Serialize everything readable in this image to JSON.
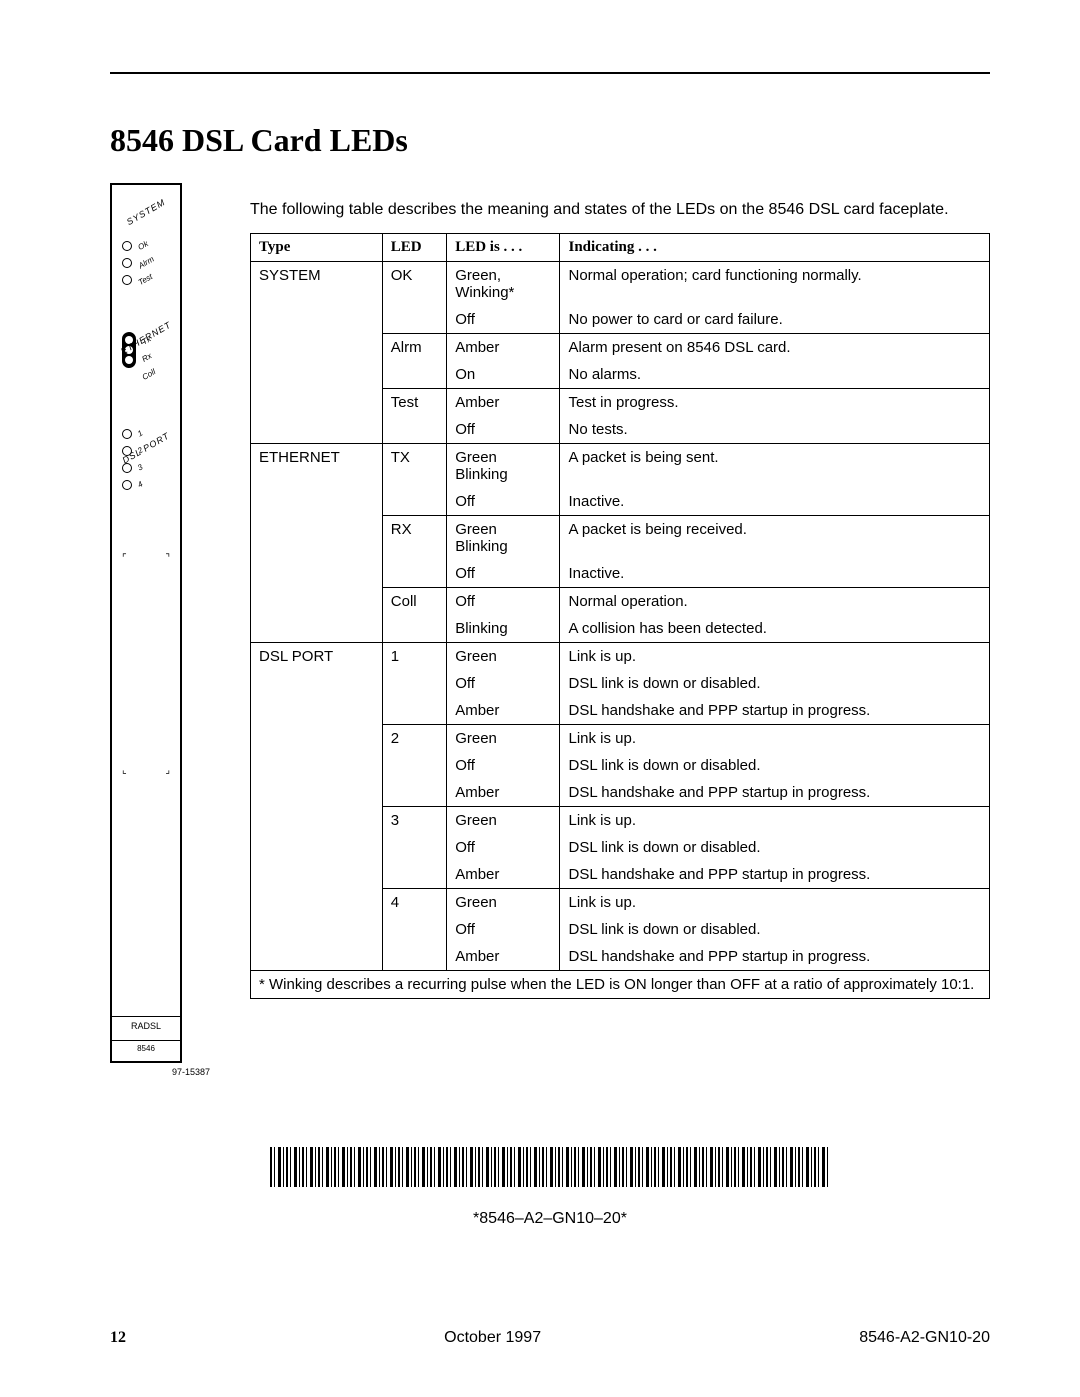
{
  "title": "8546 DSL Card LEDs",
  "intro": "The following table describes the meaning and states of the LEDs on the 8546 DSL card faceplate.",
  "faceplate": {
    "system_label": "SYSTEM",
    "system_leds": [
      "Ok",
      "Alrm",
      "Test"
    ],
    "ethernet_label": "ETHERNET",
    "ethernet_leds": [
      "Tx",
      "Rx",
      "Coll"
    ],
    "dslport_label": "DSL PORT",
    "dslport_leds": [
      "1",
      "2",
      "3",
      "4"
    ],
    "radsl": "RADSL",
    "model": "8546",
    "figref": "97-15387"
  },
  "table": {
    "headers": [
      "Type",
      "LED",
      "LED is . . .",
      "Indicating . . ."
    ],
    "groups": [
      {
        "type": "SYSTEM",
        "leds": [
          {
            "led": "OK",
            "states": [
              {
                "state": "Green, Winking*",
                "ind": "Normal operation; card functioning normally."
              },
              {
                "state": "Off",
                "ind": "No power to card or card failure."
              }
            ]
          },
          {
            "led": "Alrm",
            "states": [
              {
                "state": "Amber",
                "ind": "Alarm present on 8546 DSL card."
              },
              {
                "state": "On",
                "ind": "No alarms."
              }
            ]
          },
          {
            "led": "Test",
            "states": [
              {
                "state": "Amber",
                "ind": "Test in progress."
              },
              {
                "state": "Off",
                "ind": "No tests."
              }
            ]
          }
        ]
      },
      {
        "type": "ETHERNET",
        "leds": [
          {
            "led": "TX",
            "states": [
              {
                "state": "Green Blinking",
                "ind": "A packet is being sent."
              },
              {
                "state": "Off",
                "ind": "Inactive."
              }
            ]
          },
          {
            "led": "RX",
            "states": [
              {
                "state": "Green Blinking",
                "ind": "A packet is being received."
              },
              {
                "state": "Off",
                "ind": "Inactive."
              }
            ]
          },
          {
            "led": "Coll",
            "states": [
              {
                "state": "Off",
                "ind": "Normal operation."
              },
              {
                "state": "Blinking",
                "ind": "A collision has been detected."
              }
            ]
          }
        ]
      },
      {
        "type": "DSL PORT",
        "leds": [
          {
            "led": "1",
            "states": [
              {
                "state": "Green",
                "ind": "Link is up."
              },
              {
                "state": "Off",
                "ind": "DSL link is down or disabled."
              },
              {
                "state": "Amber",
                "ind": "DSL handshake and PPP startup in progress."
              }
            ]
          },
          {
            "led": "2",
            "states": [
              {
                "state": "Green",
                "ind": "Link is up."
              },
              {
                "state": "Off",
                "ind": "DSL link is down or disabled."
              },
              {
                "state": "Amber",
                "ind": "DSL handshake and PPP startup in progress."
              }
            ]
          },
          {
            "led": "3",
            "states": [
              {
                "state": "Green",
                "ind": "Link is up."
              },
              {
                "state": "Off",
                "ind": "DSL link is down or disabled."
              },
              {
                "state": "Amber",
                "ind": "DSL handshake and PPP startup in progress."
              }
            ]
          },
          {
            "led": "4",
            "states": [
              {
                "state": "Green",
                "ind": "Link is up."
              },
              {
                "state": "Off",
                "ind": "DSL link is down or disabled."
              },
              {
                "state": "Amber",
                "ind": "DSL handshake and PPP startup in progress."
              }
            ]
          }
        ]
      }
    ],
    "footnote": "* Winking describes a recurring pulse when the LED is ON longer than OFF at a ratio of approximately 10:1."
  },
  "barcode_text": "*8546–A2–GN10–20*",
  "footer": {
    "page": "12",
    "date": "October 1997",
    "doc": "8546-A2-GN10-20"
  }
}
